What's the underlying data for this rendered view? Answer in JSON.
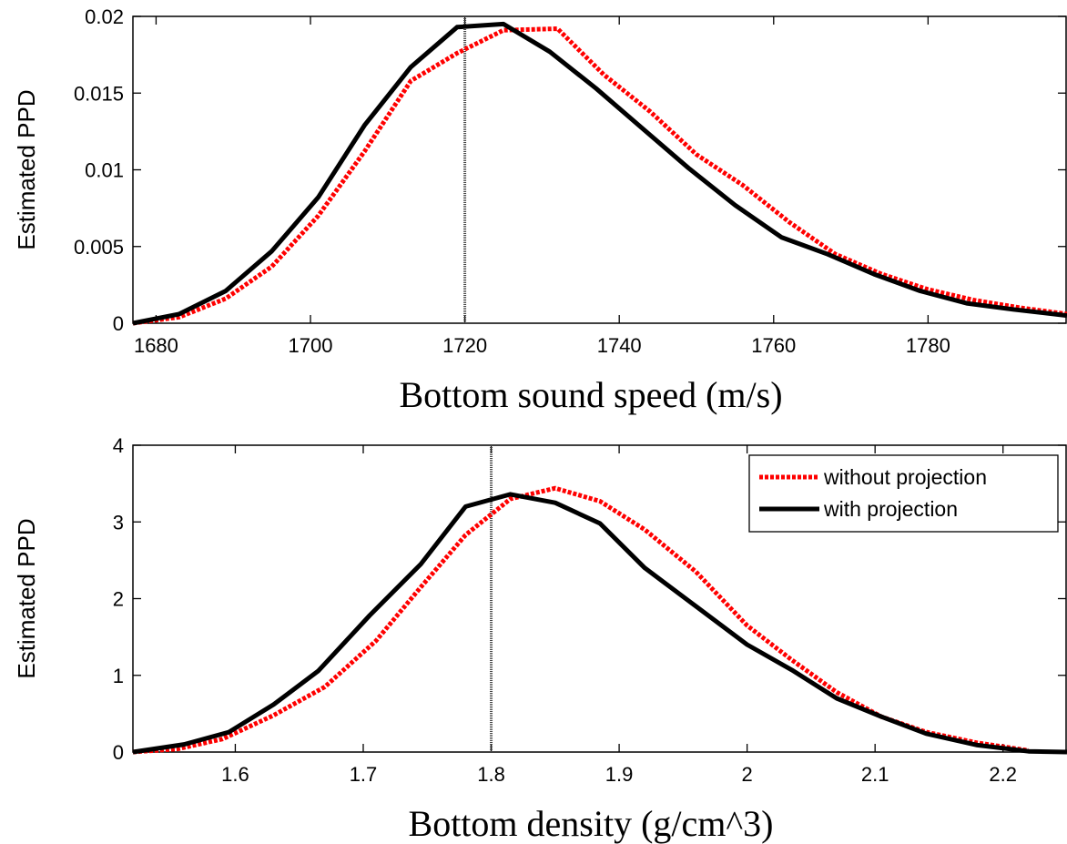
{
  "chart_data": [
    {
      "type": "line",
      "xlabel": "Bottom sound speed (m/s)",
      "ylabel": "Estimated PPD",
      "xlim": [
        1677,
        1798
      ],
      "ylim": [
        0,
        0.02
      ],
      "xticks": [
        1680,
        1700,
        1720,
        1740,
        1760,
        1780
      ],
      "xtick_labels": [
        "1680",
        "1700",
        "1720",
        "1740",
        "1760",
        "1780"
      ],
      "yticks": [
        0,
        0.005,
        0.01,
        0.015,
        0.02
      ],
      "ytick_labels": [
        "0",
        "0.005",
        "0.01",
        "0.015",
        "0.02"
      ],
      "grid": false,
      "reference_line_x": 1720,
      "series": [
        {
          "color": "#ff0000",
          "style": "dotted",
          "x": [
            1677,
            1683,
            1689,
            1695,
            1701,
            1707,
            1713,
            1719,
            1725,
            1732,
            1738,
            1744,
            1750,
            1756,
            1762,
            1768,
            1774,
            1780,
            1786,
            1792,
            1798
          ],
          "y": [
            0,
            0.0004,
            0.0016,
            0.0037,
            0.007,
            0.0112,
            0.0158,
            0.0176,
            0.0191,
            0.0192,
            0.0162,
            0.0138,
            0.011,
            0.009,
            0.0066,
            0.0045,
            0.0032,
            0.0022,
            0.0015,
            0.001,
            0.0006
          ]
        },
        {
          "color": "#000000",
          "style": "solid",
          "x": [
            1677,
            1683,
            1689,
            1695,
            1701,
            1707,
            1713,
            1719,
            1725,
            1731,
            1737,
            1743,
            1749,
            1755,
            1761,
            1767,
            1773,
            1779,
            1785,
            1791,
            1798
          ],
          "y": [
            0,
            0.0006,
            0.0021,
            0.0047,
            0.0082,
            0.0129,
            0.0167,
            0.0193,
            0.0195,
            0.0177,
            0.0153,
            0.0127,
            0.0101,
            0.0077,
            0.0056,
            0.0045,
            0.0032,
            0.0021,
            0.0013,
            0.0009,
            0.0005
          ]
        }
      ]
    },
    {
      "type": "line",
      "xlabel": "Bottom density (g/cm^3)",
      "ylabel": "Estimated PPD",
      "xlim": [
        1.52,
        2.25
      ],
      "ylim": [
        0,
        4
      ],
      "xticks": [
        1.6,
        1.7,
        1.8,
        1.9,
        2,
        2.1,
        2.2
      ],
      "xtick_labels": [
        "1.6",
        "1.7",
        "1.8",
        "1.9",
        "2",
        "2.1",
        "2.2"
      ],
      "yticks": [
        0,
        1,
        2,
        3,
        4
      ],
      "ytick_labels": [
        "0",
        "1",
        "2",
        "3",
        "4"
      ],
      "grid": false,
      "reference_line_x": 1.8,
      "legend_position": "top-right",
      "series": [
        {
          "name": "without projection",
          "color": "#ff0000",
          "style": "dotted",
          "x": [
            1.52,
            1.555,
            1.59,
            1.63,
            1.67,
            1.71,
            1.745,
            1.78,
            1.815,
            1.85,
            1.885,
            1.92,
            1.96,
            2,
            2.035,
            2.07,
            2.105,
            2.14,
            2.18,
            2.22
          ],
          "y": [
            0,
            0.04,
            0.17,
            0.48,
            0.85,
            1.45,
            2.15,
            2.83,
            3.3,
            3.44,
            3.27,
            2.9,
            2.35,
            1.65,
            1.2,
            0.78,
            0.46,
            0.26,
            0.12,
            0.02
          ]
        },
        {
          "name": "with projection",
          "color": "#000000",
          "style": "solid",
          "x": [
            1.52,
            1.56,
            1.595,
            1.63,
            1.665,
            1.705,
            1.745,
            1.78,
            1.815,
            1.85,
            1.885,
            1.92,
            1.96,
            2,
            2.035,
            2.07,
            2.105,
            2.14,
            2.18,
            2.22,
            2.25
          ],
          "y": [
            0,
            0.1,
            0.26,
            0.62,
            1.06,
            1.78,
            2.45,
            3.2,
            3.36,
            3.25,
            2.98,
            2.4,
            1.9,
            1.4,
            1.07,
            0.7,
            0.46,
            0.24,
            0.09,
            0.01,
            0
          ]
        }
      ]
    }
  ]
}
